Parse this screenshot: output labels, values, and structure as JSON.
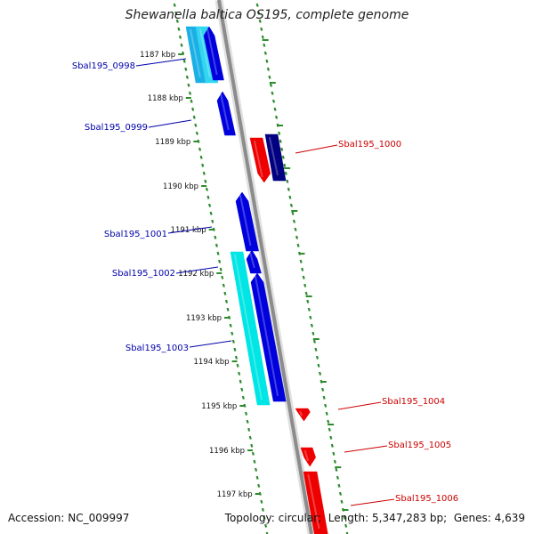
{
  "title": "Shewanella baltica OS195, complete genome",
  "footer": {
    "accession_label": "Accession:",
    "accession": "NC_009997",
    "topology_label": "Topology:",
    "topology": "circular",
    "length_label": "Length:",
    "length": "5,347,283 bp",
    "genes_label": "Genes:",
    "genes": "4,639"
  },
  "ticks": [
    {
      "label": "1187 kbp"
    },
    {
      "label": "1188 kbp"
    },
    {
      "label": "1189 kbp"
    },
    {
      "label": "1190 kbp"
    },
    {
      "label": "1191 kbp"
    },
    {
      "label": "1192 kbp"
    },
    {
      "label": "1193 kbp"
    },
    {
      "label": "1194 kbp"
    },
    {
      "label": "1195 kbp"
    },
    {
      "label": "1196 kbp"
    },
    {
      "label": "1197 kbp"
    }
  ],
  "genes": [
    {
      "id": "Sbal195_0998",
      "strand": "minus",
      "color": "#0000cc"
    },
    {
      "id": "Sbal195_0999",
      "strand": "minus",
      "color": "#0000cc"
    },
    {
      "id": "Sbal195_1000",
      "strand": "plus",
      "color": "#cc0000"
    },
    {
      "id": "Sbal195_1001",
      "strand": "minus",
      "color": "#0000cc"
    },
    {
      "id": "Sbal195_1002",
      "strand": "minus",
      "color": "#0000cc"
    },
    {
      "id": "Sbal195_1003",
      "strand": "minus",
      "color": "#0000cc"
    },
    {
      "id": "Sbal195_1004",
      "strand": "plus",
      "color": "#cc0000"
    },
    {
      "id": "Sbal195_1005",
      "strand": "plus",
      "color": "#cc0000"
    },
    {
      "id": "Sbal195_1006",
      "strand": "plus",
      "color": "#cc0000"
    }
  ],
  "colors": {
    "backbone": "#8c8c8c",
    "tick": "#2e8b2e",
    "gene_minus": "#0000dd",
    "gene_minus_dark": "#000080",
    "gene_cyan": "#00e5e5",
    "gene_cyan_alt": "#1ab0e6",
    "gene_plus": "#ee0000",
    "label_minus": "#0000aa",
    "label_plus": "#cc0000"
  }
}
